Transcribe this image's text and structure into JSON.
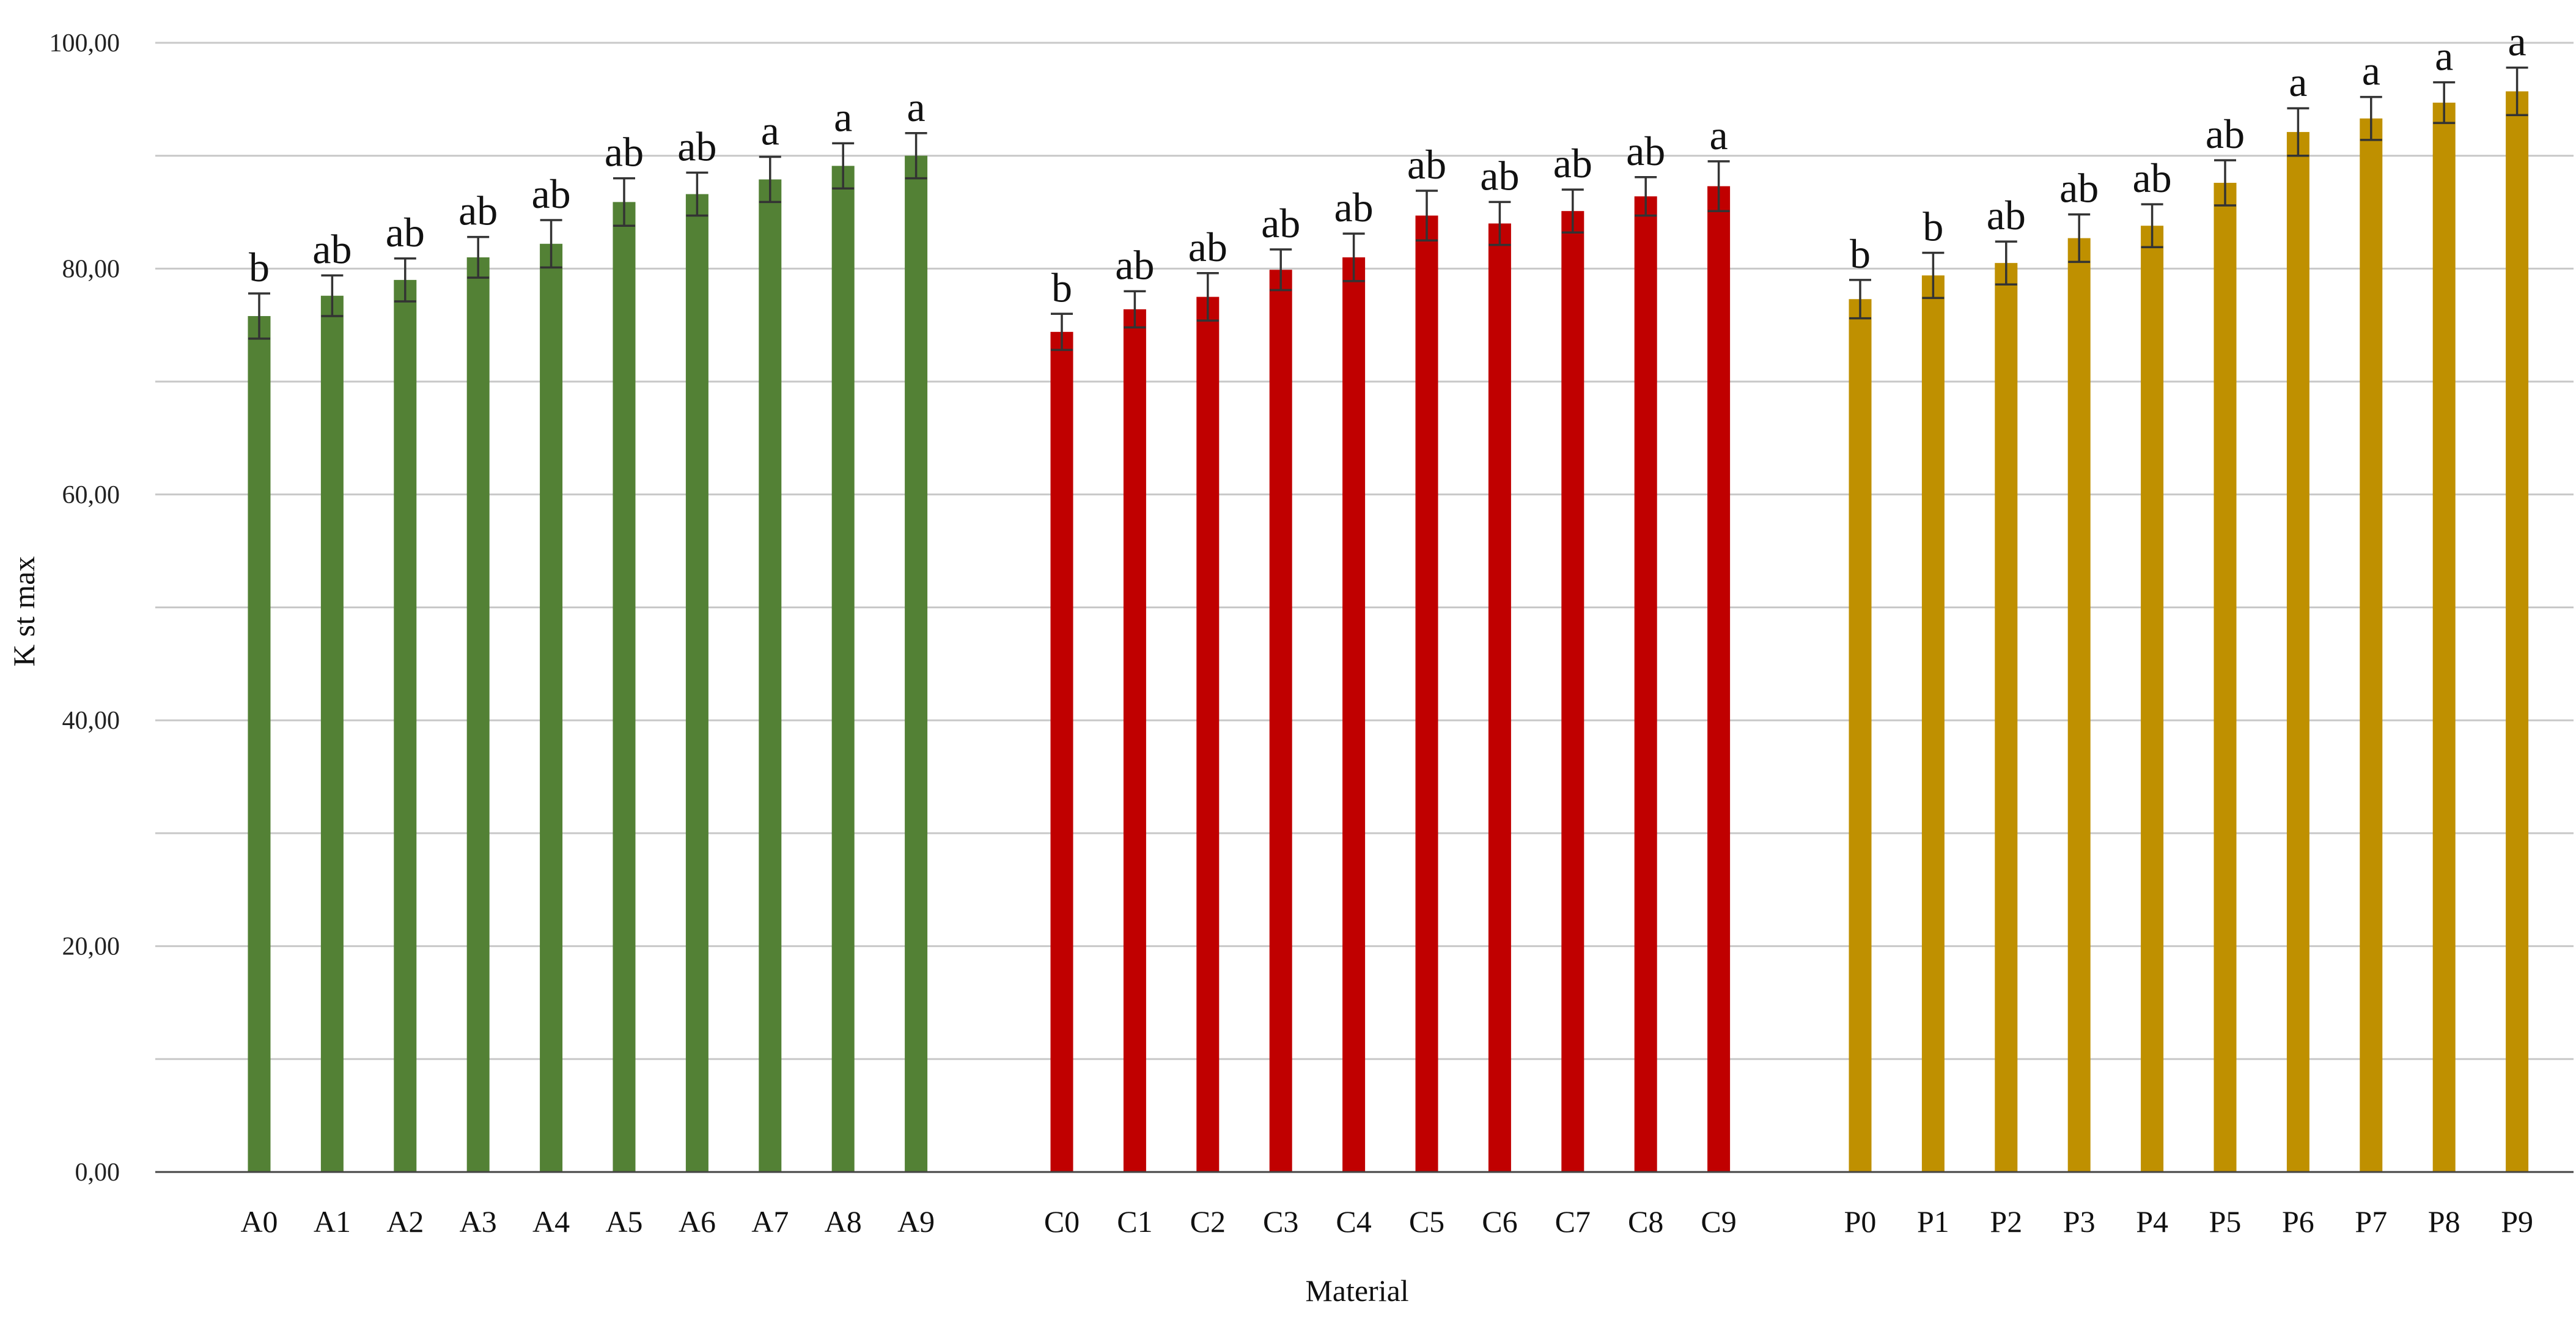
{
  "chart_data": {
    "type": "bar",
    "xlabel": "Material",
    "ylabel": "K st max",
    "ylim": [
      0,
      100
    ],
    "ytick_step": 10,
    "ytick_labels": [
      "0,00",
      "20,00",
      "40,00",
      "60,00",
      "80,00",
      "100,00"
    ],
    "grid": true,
    "groups": [
      {
        "color": "#538135",
        "categories": [
          "A0",
          "A1",
          "A2",
          "A3",
          "A4",
          "A5",
          "A6",
          "A7",
          "A8",
          "A9"
        ],
        "values": [
          75.8,
          77.6,
          79.0,
          81.0,
          82.2,
          85.9,
          86.6,
          87.9,
          89.1,
          90.0
        ],
        "errors": [
          2.0,
          1.8,
          1.9,
          1.8,
          2.1,
          2.1,
          1.9,
          2.0,
          2.0,
          2.0
        ],
        "significance": [
          "b",
          "ab",
          "ab",
          "ab",
          "ab",
          "ab",
          "ab",
          "a",
          "a",
          "a"
        ]
      },
      {
        "color": "#C00000",
        "categories": [
          "C0",
          "C1",
          "C2",
          "C3",
          "C4",
          "C5",
          "C6",
          "C7",
          "C8",
          "C9"
        ],
        "values": [
          74.4,
          76.4,
          77.5,
          79.9,
          81.0,
          84.7,
          84.0,
          85.1,
          86.4,
          87.3
        ],
        "errors": [
          1.6,
          1.6,
          2.1,
          1.8,
          2.1,
          2.2,
          1.9,
          1.9,
          1.7,
          2.2
        ],
        "significance": [
          "b",
          "ab",
          "ab",
          "ab",
          "ab",
          "ab",
          "ab",
          "ab",
          "ab",
          "a"
        ]
      },
      {
        "color": "#BF9000",
        "categories": [
          "P0",
          "P1",
          "P2",
          "P3",
          "P4",
          "P5",
          "P6",
          "P7",
          "P8",
          "P9"
        ],
        "values": [
          77.3,
          79.4,
          80.5,
          82.7,
          83.8,
          87.6,
          92.1,
          93.3,
          94.7,
          95.7
        ],
        "errors": [
          1.7,
          2.0,
          1.9,
          2.1,
          1.9,
          2.0,
          2.1,
          1.9,
          1.8,
          2.1
        ],
        "significance": [
          "b",
          "b",
          "ab",
          "ab",
          "ab",
          "ab",
          "a",
          "a",
          "a",
          "a"
        ]
      }
    ]
  }
}
